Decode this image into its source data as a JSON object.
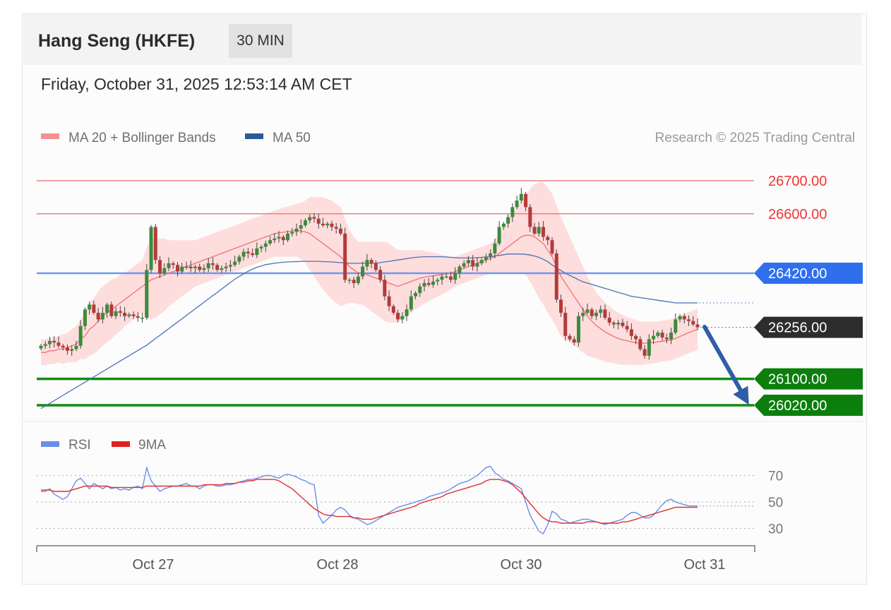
{
  "header": {
    "title": "Hang Seng (HKFE)",
    "interval": "30 MIN",
    "datetime": "Friday, October 31, 2025 12:53:14 AM CET"
  },
  "legend": {
    "ma20": "MA 20 + Bollinger Bands",
    "ma50": "MA 50",
    "copyright": "Research © 2025 Trading Central",
    "rsi": "RSI",
    "rsi_ma": "9MA"
  },
  "colors": {
    "up": "#3d8a3d",
    "down": "#b53a3a",
    "bands": "#ffd3d3",
    "ma20": "#f07070",
    "ma50": "#4a73b5",
    "resistance": "#f08080",
    "pivot": "#6f97f0",
    "support": "#128a12",
    "label_blue": "#2f6fed",
    "label_green": "#0c7e0c",
    "label_dark": "#2d2d2d",
    "arrow": "#2f5da8"
  },
  "chart_data": {
    "type": "candlestick",
    "x_labels": [
      "Oct 27",
      "Oct 28",
      "Oct 30",
      "Oct 31"
    ],
    "ylim": [
      26000,
      26730
    ],
    "levels": [
      {
        "value": "26700.00",
        "price": 26700,
        "kind": "resistance"
      },
      {
        "value": "26600.00",
        "price": 26600,
        "kind": "resistance"
      },
      {
        "value": "26420.00",
        "price": 26420,
        "kind": "pivot"
      },
      {
        "value": "26256.00",
        "price": 26256,
        "kind": "last"
      },
      {
        "value": "26100.00",
        "price": 26100,
        "kind": "support"
      },
      {
        "value": "26020.00",
        "price": 26020,
        "kind": "support"
      }
    ],
    "close": [
      26200,
      26205,
      26215,
      26210,
      26200,
      26195,
      26185,
      26190,
      26200,
      26260,
      26310,
      26325,
      26300,
      26280,
      26300,
      26325,
      26290,
      26305,
      26300,
      26290,
      26295,
      26290,
      26285,
      26285,
      26430,
      26560,
      26460,
      26420,
      26435,
      26450,
      26445,
      26425,
      26440,
      26440,
      26435,
      26440,
      26430,
      26435,
      26450,
      26445,
      26430,
      26435,
      26440,
      26445,
      26455,
      26470,
      26485,
      26480,
      26475,
      26495,
      26500,
      26510,
      26520,
      26525,
      26530,
      26520,
      26540,
      26545,
      26555,
      26565,
      26580,
      26590,
      26585,
      26570,
      26565,
      26570,
      26560,
      26555,
      26540,
      26400,
      26400,
      26390,
      26410,
      26440,
      26460,
      26450,
      26430,
      26400,
      26350,
      26320,
      26300,
      26280,
      26290,
      26310,
      26350,
      26360,
      26380,
      26390,
      26385,
      26395,
      26400,
      26410,
      26410,
      26400,
      26420,
      26440,
      26450,
      26460,
      26440,
      26450,
      26460,
      26470,
      26480,
      26510,
      26560,
      26570,
      26590,
      26620,
      26640,
      26660,
      26620,
      26560,
      26540,
      26560,
      26530,
      26520,
      26480,
      26340,
      26300,
      26230,
      26220,
      26210,
      26290,
      26300,
      26310,
      26290,
      26300,
      26310,
      26285,
      26270,
      26265,
      26270,
      26260,
      26250,
      26230,
      26220,
      26190,
      26170,
      26220,
      26230,
      26240,
      26225,
      26220,
      26240,
      26280,
      26290,
      26280,
      26275,
      26265,
      26256
    ],
    "ma20": [
      26180,
      26180,
      26185,
      26185,
      26190,
      26190,
      26195,
      26200,
      26205,
      26220,
      26230,
      26250,
      26260,
      26275,
      26290,
      26300,
      26310,
      26320,
      26330,
      26340,
      26350,
      26360,
      26370,
      26380,
      26390,
      26400,
      26405,
      26410,
      26415,
      26420,
      26425,
      26430,
      26435,
      26440,
      26445,
      26450,
      26455,
      26460,
      26465,
      26470,
      26475,
      26480,
      26485,
      26490,
      26495,
      26500,
      26505,
      26510,
      26515,
      26520,
      26525,
      26530,
      26535,
      26540,
      26542,
      26544,
      26546,
      26548,
      26550,
      26548,
      26545,
      26540,
      26530,
      26520,
      26510,
      26500,
      26490,
      26480,
      26470,
      26455,
      26440,
      26430,
      26420,
      26420,
      26415,
      26410,
      26405,
      26400,
      26395,
      26390,
      26385,
      26380,
      26385,
      26390,
      26395,
      26400,
      26405,
      26408,
      26410,
      26412,
      26414,
      26416,
      26418,
      26420,
      26425,
      26430,
      26435,
      26440,
      26445,
      26450,
      26455,
      26460,
      26465,
      26470,
      26480,
      26490,
      26500,
      26510,
      26520,
      26530,
      26535,
      26535,
      26530,
      26520,
      26510,
      26490,
      26470,
      26440,
      26410,
      26390,
      26370,
      26350,
      26330,
      26310,
      26290,
      26275,
      26262,
      26252,
      26242,
      26235,
      26228,
      26222,
      26218,
      26215,
      26212,
      26210,
      26208,
      26208,
      26209,
      26210,
      26212,
      26214,
      26216,
      26218,
      26222,
      26228,
      26234,
      26240,
      26245,
      26250
    ],
    "ma50": [
      26010,
      26018,
      26026,
      26034,
      26042,
      26050,
      26058,
      26066,
      26074,
      26082,
      26090,
      26098,
      26106,
      26114,
      26122,
      26130,
      26138,
      26146,
      26154,
      26162,
      26170,
      26178,
      26186,
      26194,
      26202,
      26212,
      26222,
      26232,
      26242,
      26252,
      26262,
      26272,
      26282,
      26292,
      26302,
      26312,
      26322,
      26332,
      26342,
      26352,
      26362,
      26372,
      26382,
      26392,
      26402,
      26410,
      26418,
      26426,
      26432,
      26438,
      26442,
      26446,
      26448,
      26450,
      26452,
      26453,
      26454,
      26455,
      26455,
      26456,
      26456,
      26456,
      26456,
      26456,
      26455,
      26455,
      26454,
      26453,
      26452,
      26451,
      26450,
      26450,
      26450,
      26450,
      26450,
      26450,
      26450,
      26452,
      26454,
      26456,
      26458,
      26460,
      26462,
      26464,
      26466,
      26468,
      26469,
      26470,
      26470,
      26470,
      26470,
      26470,
      26469,
      26468,
      26467,
      26466,
      26466,
      26466,
      26466,
      26467,
      26468,
      26469,
      26470,
      26472,
      26474,
      26476,
      26478,
      26478,
      26478,
      26478,
      26477,
      26475,
      26472,
      26468,
      26462,
      26455,
      26445,
      26436,
      26428,
      26420,
      26413,
      26407,
      26400,
      26394,
      26390,
      26386,
      26382,
      26378,
      26374,
      26370,
      26366,
      26362,
      26358,
      26354,
      26350,
      26348,
      26346,
      26344,
      26342,
      26340,
      26338,
      26336,
      26334,
      26332,
      26330,
      26330,
      26330,
      26330,
      26330,
      26330
    ],
    "band_width": [
      40,
      40,
      40,
      40,
      40,
      45,
      45,
      50,
      55,
      60,
      70,
      80,
      85,
      90,
      90,
      90,
      90,
      85,
      85,
      80,
      80,
      80,
      80,
      80,
      110,
      120,
      120,
      115,
      110,
      100,
      95,
      90,
      85,
      80,
      75,
      70,
      70,
      70,
      70,
      70,
      70,
      70,
      70,
      70,
      70,
      70,
      70,
      70,
      70,
      70,
      70,
      70,
      70,
      70,
      72,
      74,
      76,
      78,
      80,
      85,
      95,
      110,
      120,
      130,
      140,
      145,
      150,
      150,
      150,
      130,
      110,
      100,
      95,
      95,
      100,
      105,
      110,
      115,
      120,
      120,
      115,
      110,
      105,
      100,
      95,
      90,
      85,
      80,
      75,
      70,
      65,
      60,
      55,
      50,
      45,
      45,
      45,
      45,
      45,
      45,
      45,
      45,
      45,
      50,
      60,
      70,
      80,
      90,
      100,
      110,
      120,
      140,
      160,
      175,
      185,
      190,
      190,
      185,
      180,
      170,
      160,
      150,
      140,
      130,
      120,
      110,
      100,
      95,
      90,
      85,
      80,
      78,
      75,
      72,
      70,
      68,
      66,
      65,
      64,
      63,
      62,
      62,
      62,
      62,
      62,
      62,
      62,
      62,
      62,
      62
    ],
    "rsi": [
      58,
      58,
      60,
      56,
      54,
      52,
      54,
      60,
      66,
      68,
      64,
      60,
      64,
      62,
      60,
      62,
      60,
      61,
      59,
      60,
      59,
      61,
      62,
      60,
      76,
      66,
      62,
      58,
      60,
      61,
      62,
      62,
      63,
      64,
      62,
      62,
      60,
      62,
      63,
      63,
      62,
      62,
      63,
      63,
      64,
      65,
      66,
      67,
      67,
      68,
      69,
      70,
      70,
      69,
      68,
      70,
      71,
      70,
      69,
      67,
      66,
      64,
      63,
      40,
      34,
      37,
      40,
      44,
      46,
      44,
      40,
      38,
      37,
      35,
      33,
      34,
      36,
      38,
      40,
      42,
      44,
      46,
      47,
      48,
      49,
      50,
      51,
      52,
      54,
      55,
      56,
      57,
      58,
      60,
      62,
      64,
      65,
      66,
      68,
      70,
      73,
      76,
      77,
      72,
      70,
      67,
      66,
      64,
      62,
      60,
      50,
      40,
      34,
      28,
      26,
      33,
      43,
      41,
      37,
      36,
      34,
      35,
      36,
      37,
      37,
      36,
      35,
      34,
      33,
      34,
      35,
      36,
      37,
      40,
      42,
      42,
      40,
      38,
      38,
      40,
      44,
      48,
      51,
      52,
      50,
      49,
      48,
      47,
      47,
      47
    ],
    "rsi_ma": [
      59,
      59,
      59,
      58,
      58,
      58,
      58,
      59,
      60,
      61,
      62,
      62,
      62,
      62,
      62,
      62,
      61,
      61,
      61,
      61,
      61,
      61,
      61,
      61,
      62,
      62,
      62,
      62,
      62,
      62,
      62,
      62,
      62,
      62,
      62,
      62,
      62,
      63,
      63,
      63,
      63,
      63,
      64,
      64,
      64,
      65,
      65,
      66,
      66,
      67,
      67,
      67,
      67,
      67,
      66,
      64,
      62,
      60,
      57,
      54,
      51,
      48,
      45,
      43,
      41,
      40,
      40,
      39,
      39,
      39,
      39,
      38,
      38,
      37,
      37,
      37,
      38,
      39,
      40,
      41,
      42,
      43,
      44,
      45,
      46,
      47,
      49,
      50,
      51,
      52,
      53,
      54,
      56,
      57,
      58,
      59,
      60,
      61,
      62,
      63,
      64,
      66,
      67,
      67,
      67,
      66,
      65,
      63,
      60,
      57,
      53,
      49,
      45,
      41,
      38,
      36,
      35,
      35,
      34,
      34,
      34,
      34,
      34,
      34,
      35,
      35,
      35,
      34,
      34,
      34,
      34,
      34,
      35,
      35,
      36,
      37,
      38,
      39,
      40,
      41,
      42,
      43,
      44,
      45,
      46,
      46,
      46,
      46,
      46,
      46
    ],
    "rsi_levels": [
      "70",
      "50",
      "30"
    ]
  }
}
